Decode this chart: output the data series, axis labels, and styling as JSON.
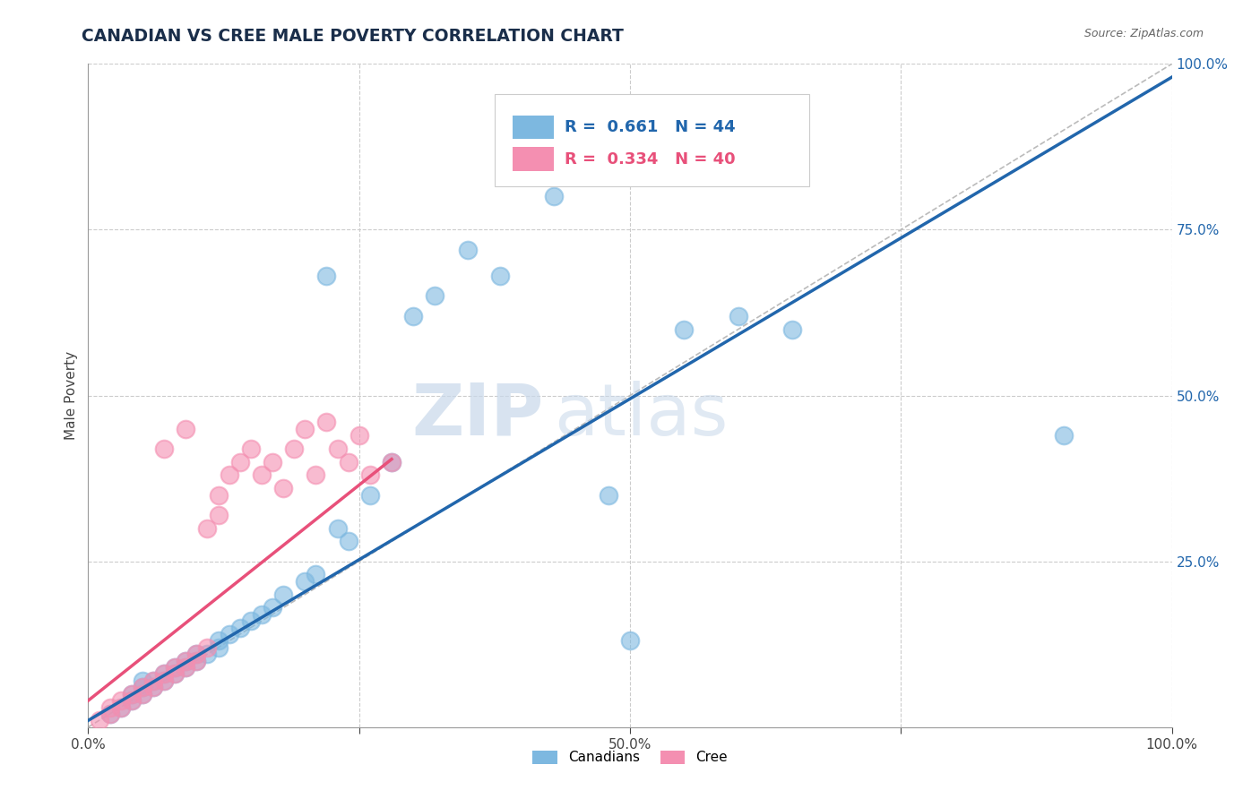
{
  "title": "CANADIAN VS CREE MALE POVERTY CORRELATION CHART",
  "source_text": "Source: ZipAtlas.com",
  "ylabel": "Male Poverty",
  "xlim": [
    0.0,
    1.0
  ],
  "ylim": [
    0.0,
    1.0
  ],
  "xticks": [
    0.0,
    0.25,
    0.5,
    0.75,
    1.0
  ],
  "yticks": [
    0.0,
    0.25,
    0.5,
    0.75,
    1.0
  ],
  "xticklabels": [
    "0.0%",
    "",
    "50.0%",
    "",
    "100.0%"
  ],
  "yticklabels": [
    "",
    "25.0%",
    "50.0%",
    "75.0%",
    "100.0%"
  ],
  "canadians_color": "#7db8e0",
  "cree_color": "#f48fb1",
  "canadians_R": 0.661,
  "canadians_N": 44,
  "cree_R": 0.334,
  "cree_N": 40,
  "canadians_line_color": "#2166ac",
  "cree_line_color": "#e8507a",
  "ref_line_color": "#bbbbbb",
  "watermark": "ZIPatlas",
  "watermark_color": "#c5d8ea",
  "background_color": "#ffffff",
  "grid_color": "#cccccc",
  "canadians_x": [
    0.02,
    0.03,
    0.04,
    0.04,
    0.05,
    0.05,
    0.05,
    0.06,
    0.06,
    0.07,
    0.07,
    0.08,
    0.08,
    0.09,
    0.09,
    0.1,
    0.1,
    0.11,
    0.12,
    0.12,
    0.13,
    0.14,
    0.15,
    0.16,
    0.17,
    0.18,
    0.2,
    0.21,
    0.22,
    0.23,
    0.24,
    0.26,
    0.28,
    0.3,
    0.32,
    0.35,
    0.38,
    0.43,
    0.5,
    0.55,
    0.6,
    0.65,
    0.9,
    0.48
  ],
  "canadians_y": [
    0.02,
    0.03,
    0.04,
    0.05,
    0.05,
    0.06,
    0.07,
    0.06,
    0.07,
    0.07,
    0.08,
    0.08,
    0.09,
    0.09,
    0.1,
    0.1,
    0.11,
    0.11,
    0.12,
    0.13,
    0.14,
    0.15,
    0.16,
    0.17,
    0.18,
    0.2,
    0.22,
    0.23,
    0.68,
    0.3,
    0.28,
    0.35,
    0.4,
    0.62,
    0.65,
    0.72,
    0.68,
    0.8,
    0.13,
    0.6,
    0.62,
    0.6,
    0.44,
    0.35
  ],
  "cree_x": [
    0.01,
    0.02,
    0.02,
    0.03,
    0.03,
    0.04,
    0.04,
    0.05,
    0.05,
    0.06,
    0.06,
    0.07,
    0.07,
    0.08,
    0.08,
    0.09,
    0.09,
    0.1,
    0.1,
    0.11,
    0.11,
    0.12,
    0.12,
    0.13,
    0.14,
    0.15,
    0.16,
    0.17,
    0.18,
    0.19,
    0.2,
    0.21,
    0.22,
    0.23,
    0.24,
    0.25,
    0.26,
    0.28,
    0.07,
    0.09
  ],
  "cree_y": [
    0.01,
    0.02,
    0.03,
    0.03,
    0.04,
    0.04,
    0.05,
    0.05,
    0.06,
    0.06,
    0.07,
    0.07,
    0.08,
    0.08,
    0.09,
    0.09,
    0.1,
    0.1,
    0.11,
    0.12,
    0.3,
    0.32,
    0.35,
    0.38,
    0.4,
    0.42,
    0.38,
    0.4,
    0.36,
    0.42,
    0.45,
    0.38,
    0.46,
    0.42,
    0.4,
    0.44,
    0.38,
    0.4,
    0.42,
    0.45
  ]
}
